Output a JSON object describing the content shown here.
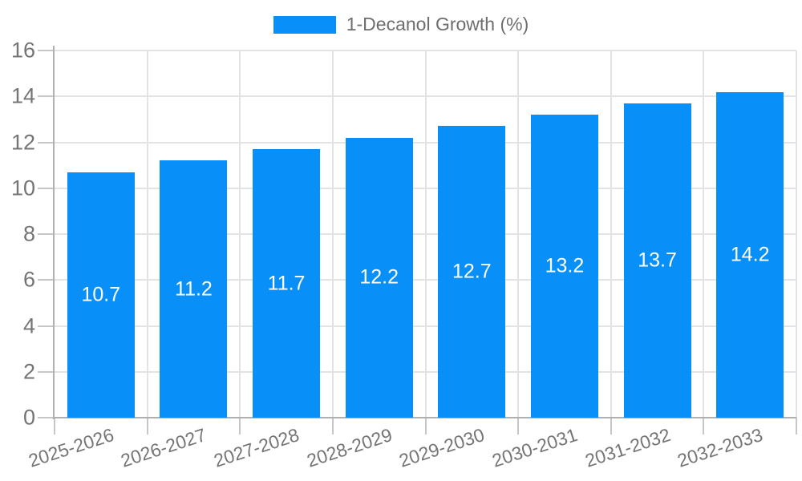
{
  "legend": {
    "label": "1-Decanol Growth (%)"
  },
  "colors": {
    "bar": "#0890F8",
    "grid": "#e3e3e3",
    "axis": "#b0b0b0",
    "tick": "#c6c6c6",
    "tick_label": "#757575",
    "legend_text": "#6e6e6e",
    "data_label": "#ffffff",
    "background": "#ffffff"
  },
  "chart_data": {
    "type": "bar",
    "title": "",
    "xlabel": "",
    "ylabel": "",
    "series_name": "1-Decanol Growth (%)",
    "categories": [
      "2025-2026",
      "2026-2027",
      "2027-2028",
      "2028-2029",
      "2029-2030",
      "2030-2031",
      "2031-2032",
      "2032-2033"
    ],
    "values": [
      10.7,
      11.2,
      11.7,
      12.2,
      12.7,
      13.2,
      13.7,
      14.2
    ],
    "data_labels": [
      "10.7",
      "11.2",
      "11.7",
      "12.2",
      "12.7",
      "13.2",
      "13.7",
      "14.2"
    ],
    "ylim": [
      0,
      16
    ],
    "ytick_step": 2,
    "yticks": [
      "0",
      "2",
      "4",
      "6",
      "8",
      "10",
      "12",
      "14",
      "16"
    ],
    "grid": true,
    "legend_position": "top",
    "data_label_position": "center-of-bar"
  }
}
